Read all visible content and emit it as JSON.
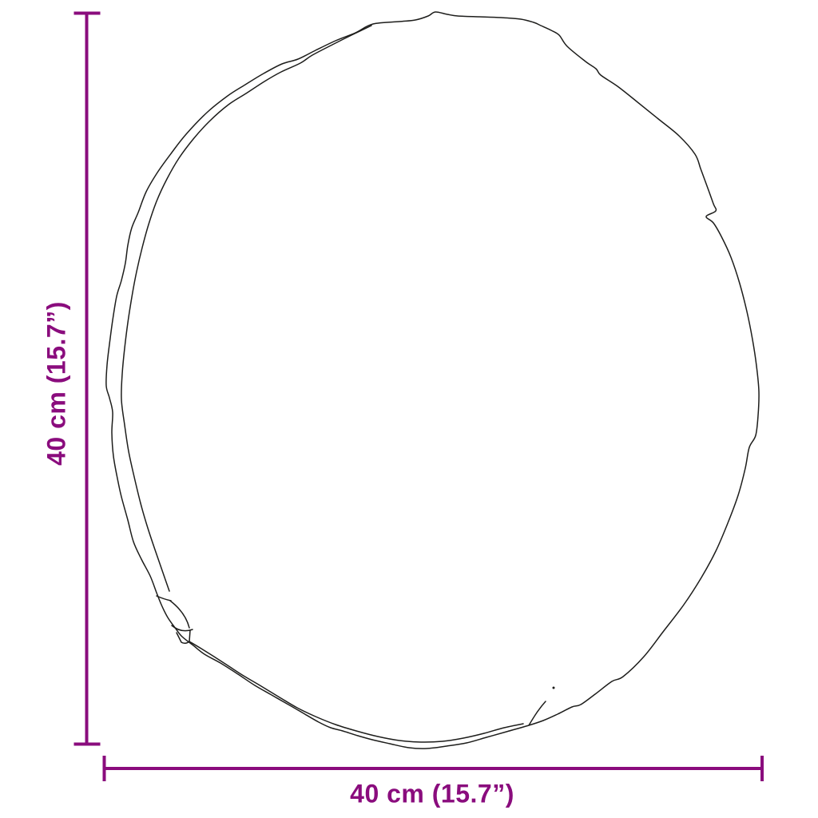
{
  "diagram": {
    "vertical_label": "40 cm (15.7”)",
    "horizontal_label": "40 cm (15.7”)"
  },
  "colors": {
    "accent": "#8a0c7d",
    "outline": "#1d1d1b",
    "background": "#ffffff"
  }
}
